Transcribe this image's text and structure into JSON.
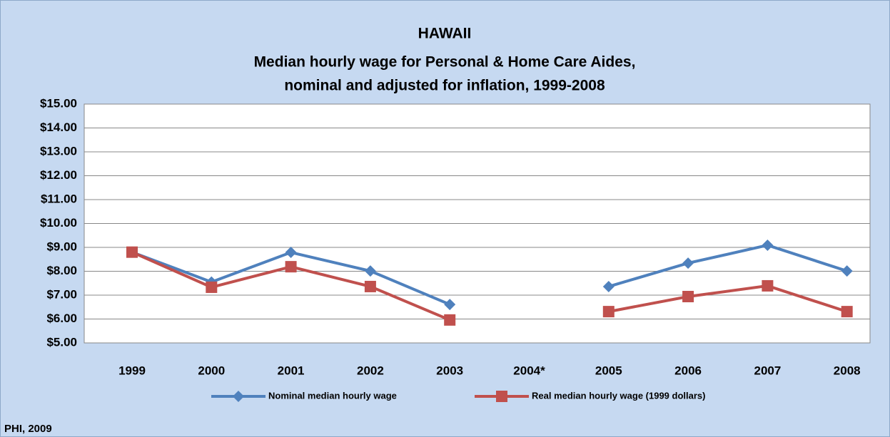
{
  "chart_data": {
    "type": "line",
    "title": "HAWAII",
    "subtitle": [
      "Median hourly wage for Personal & Home Care Aides,",
      "nominal and adjusted for inflation, 1999-2008"
    ],
    "source": "PHI, 2009",
    "categories": [
      "1999",
      "2000",
      "2001",
      "2002",
      "2003",
      "2004*",
      "2005",
      "2006",
      "2007",
      "2008"
    ],
    "series": [
      {
        "name": "Nominal median hourly wage",
        "color": "#4f81bd",
        "marker": "diamond",
        "values": [
          8.8,
          7.55,
          8.79,
          8.01,
          6.61,
          null,
          7.36,
          8.34,
          9.09,
          8.01
        ]
      },
      {
        "name": "Real median hourly wage (1999 dollars)",
        "color": "#c0504d",
        "marker": "square",
        "values": [
          8.8,
          7.33,
          8.19,
          7.36,
          5.96,
          null,
          6.31,
          6.94,
          7.39,
          6.31
        ]
      }
    ],
    "ylim": [
      5,
      15
    ],
    "yticks": [
      {
        "value": 5,
        "label": "$5.00"
      },
      {
        "value": 6,
        "label": "$6.00"
      },
      {
        "value": 7,
        "label": "$7.00"
      },
      {
        "value": 8,
        "label": "$8.00"
      },
      {
        "value": 9,
        "label": "$9.00"
      },
      {
        "value": 10,
        "label": "$10.00"
      },
      {
        "value": 11,
        "label": "$11.00"
      },
      {
        "value": 12,
        "label": "$12.00"
      },
      {
        "value": 13,
        "label": "$13.00"
      },
      {
        "value": 14,
        "label": "$14.00"
      },
      {
        "value": 15,
        "label": "$15.00"
      }
    ],
    "grid": true,
    "legend": "bottom"
  }
}
